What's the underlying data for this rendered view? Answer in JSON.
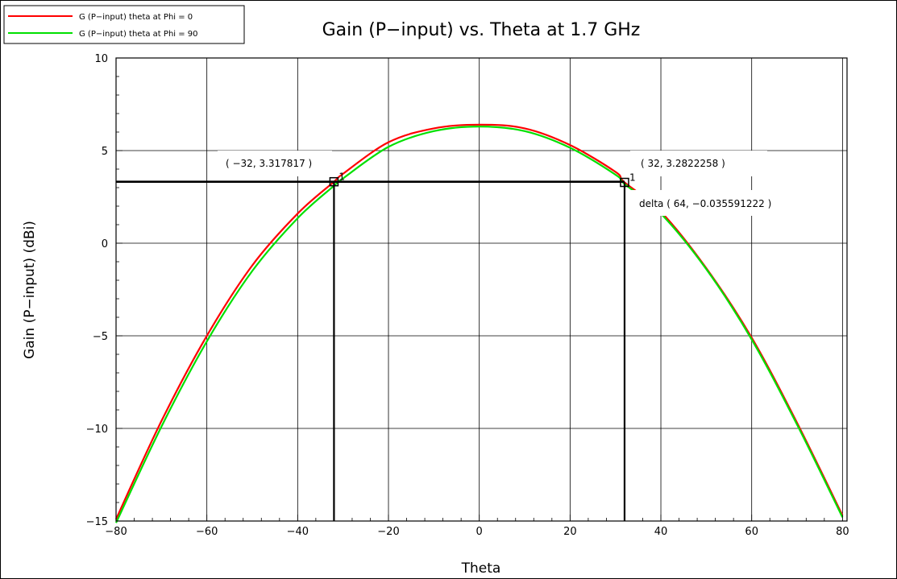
{
  "chart_data": {
    "type": "line",
    "title": "Gain (P−input) vs. Theta at 1.7 GHz",
    "xlabel": "Theta",
    "ylabel": "Gain (P−input) (dBi)",
    "xlim": [
      -80,
      81
    ],
    "ylim": [
      -15,
      10
    ],
    "xticks": [
      -80,
      -60,
      -40,
      -20,
      0,
      20,
      40,
      60,
      80
    ],
    "yticks": [
      -15,
      -10,
      -5,
      0,
      5,
      10
    ],
    "xtick_labels": [
      "−80",
      "−60",
      "−40",
      "−20",
      "0",
      "20",
      "40",
      "60",
      "80"
    ],
    "ytick_labels": [
      "−15",
      "−10",
      "−5",
      "0",
      "5",
      "10"
    ],
    "grid": true,
    "legend": "top-left",
    "series": [
      {
        "name": "G (P−input) theta at Phi = 0",
        "color": "#ff0000",
        "x": [
          -80,
          -70,
          -60,
          -50,
          -40,
          -32,
          -30,
          -20,
          -10,
          0,
          10,
          20,
          30,
          32,
          40,
          50,
          60,
          70,
          80
        ],
        "y": [
          -14.9,
          -9.6,
          -5.0,
          -1.2,
          1.6,
          3.318,
          3.75,
          5.45,
          6.2,
          6.4,
          6.2,
          5.3,
          3.85,
          3.282,
          1.7,
          -1.35,
          -5.1,
          -9.7,
          -14.7
        ]
      },
      {
        "name": "G (P−input) theta at Phi = 90",
        "color": "#00e000",
        "x": [
          -80,
          -70,
          -60,
          -50,
          -40,
          -32,
          -30,
          -20,
          -10,
          0,
          10,
          20,
          30,
          32,
          40,
          50,
          60,
          70,
          80
        ],
        "y": [
          -15.1,
          -9.9,
          -5.3,
          -1.5,
          1.35,
          3.1,
          3.5,
          5.2,
          6.05,
          6.3,
          6.05,
          5.15,
          3.7,
          3.2,
          1.6,
          -1.4,
          -5.2,
          -9.8,
          -14.8
        ]
      }
    ],
    "markers": [
      {
        "x": -32,
        "y": 3.317817,
        "label": "( −32, 3.317817 )"
      },
      {
        "x": 32,
        "y": 3.2822258,
        "label": "( 32, 3.2822258 )"
      }
    ],
    "delta_label": "delta ( 64, −0.035591222 )"
  }
}
